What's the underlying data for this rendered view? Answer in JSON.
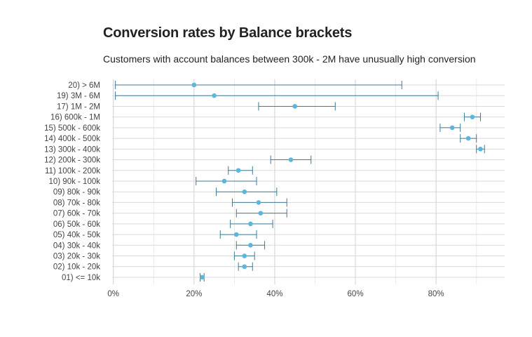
{
  "chart_data": {
    "type": "scatter",
    "title": "Conversion rates by Balance brackets",
    "subtitle": "Customers with account balances between 300k - 2M have unusually high conversion",
    "xlabel": "",
    "ylabel": "",
    "xlim": [
      -0.003,
      0.97
    ],
    "x_ticks": [
      0,
      0.2,
      0.4,
      0.6,
      0.8
    ],
    "x_tick_labels": [
      "0%",
      "20%",
      "40%",
      "60%",
      "80%"
    ],
    "grid": true,
    "point_color": "#5bb5dc",
    "errorbar_color": "#3d7a96",
    "categories": [
      "20) > 6M",
      "19) 3M - 6M",
      "17) 1M - 2M",
      "16) 600k - 1M",
      "15) 500k - 600k",
      "14) 400k - 500k",
      "13) 300k - 400k",
      "12) 200k - 300k",
      "11) 100k - 200k",
      "10) 90k - 100k",
      "09) 80k - 90k",
      "08) 70k - 80k",
      "07) 60k - 70k",
      "06) 50k - 60k",
      "05) 40k - 50k",
      "04) 30k - 40k",
      "03) 20k - 30k",
      "02) 10k - 20k",
      "01) <= 10k"
    ],
    "values": [
      0.2,
      0.25,
      0.45,
      0.89,
      0.84,
      0.88,
      0.91,
      0.44,
      0.31,
      0.275,
      0.325,
      0.36,
      0.365,
      0.34,
      0.305,
      0.34,
      0.325,
      0.325,
      0.22
    ],
    "lower": [
      0.005,
      0.005,
      0.36,
      0.87,
      0.81,
      0.86,
      0.9,
      0.39,
      0.285,
      0.205,
      0.255,
      0.295,
      0.305,
      0.29,
      0.265,
      0.305,
      0.3,
      0.31,
      0.215
    ],
    "upper": [
      0.715,
      0.805,
      0.55,
      0.91,
      0.86,
      0.9,
      0.92,
      0.49,
      0.345,
      0.355,
      0.405,
      0.43,
      0.43,
      0.395,
      0.355,
      0.375,
      0.35,
      0.345,
      0.225
    ]
  }
}
